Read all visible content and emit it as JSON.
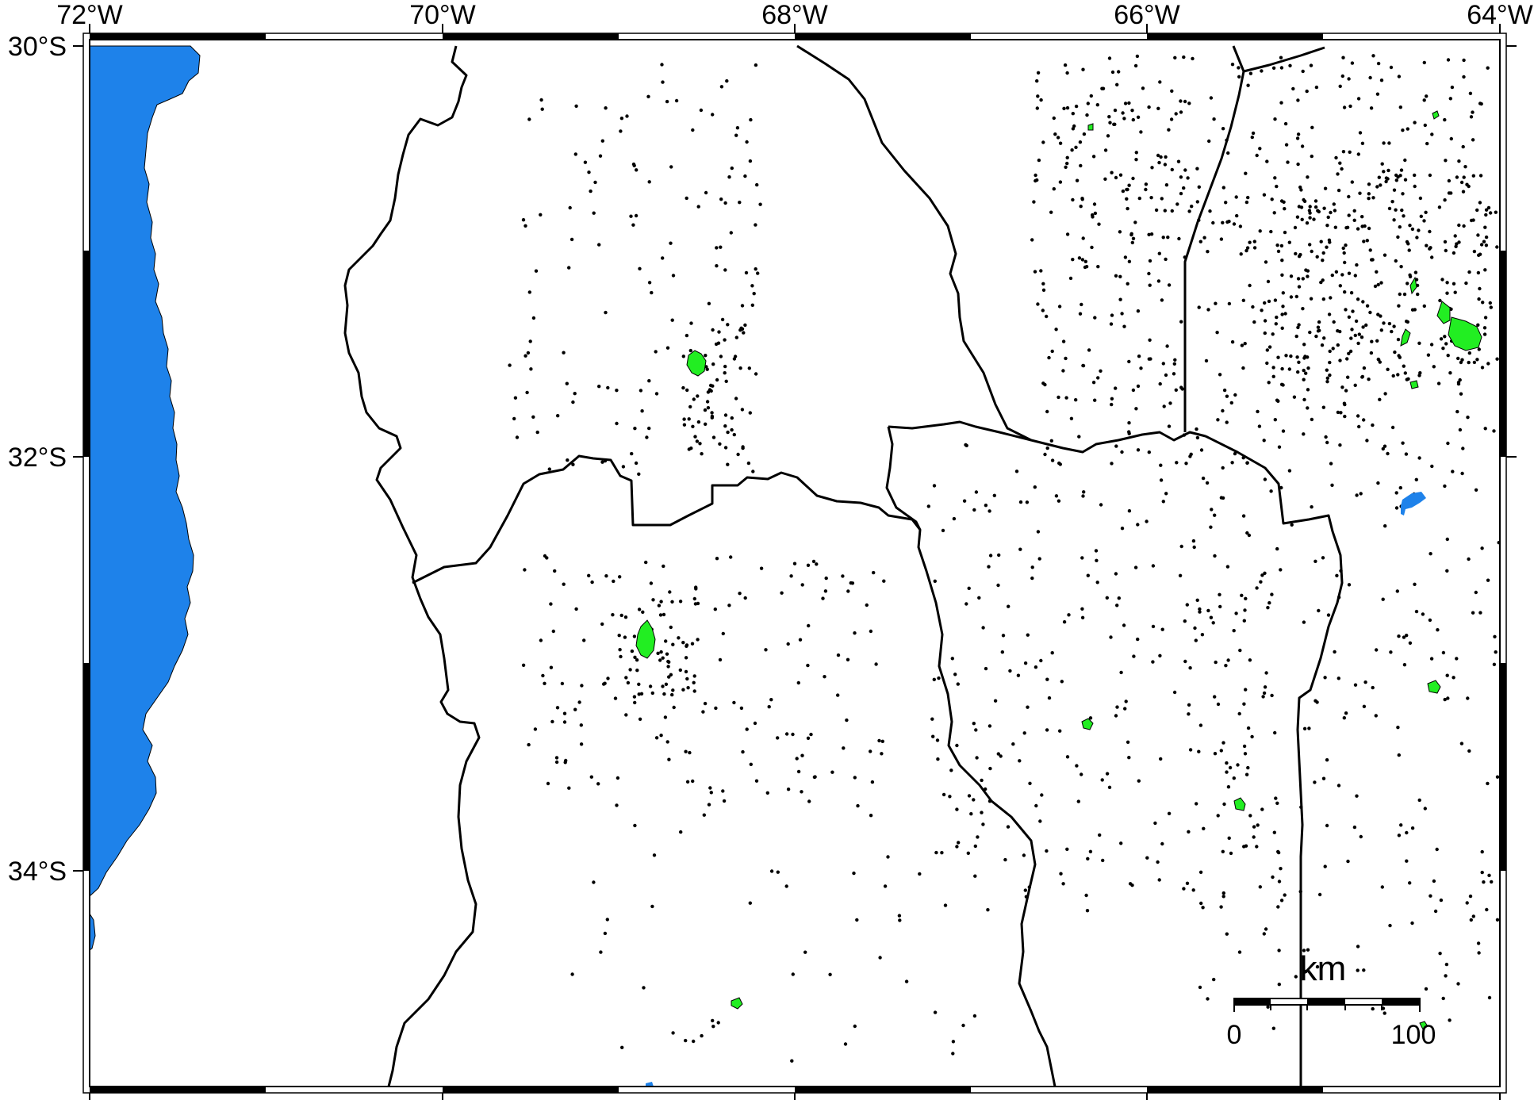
{
  "map": {
    "lon_labels": [
      "72°W",
      "70°W",
      "68°W",
      "66°W",
      "64°W"
    ],
    "lat_labels": [
      "30°S",
      "32°S",
      "34°S"
    ],
    "extent": {
      "lon_min": -72,
      "lon_max": -64,
      "lat_min": -35.05,
      "lat_max": -30
    },
    "frame_style": "alternating black/white ticks, 1 degree intervals",
    "colors": {
      "ocean": "#1e82ea",
      "land": "#ffffff",
      "urban": "#22ee22",
      "lake": "#1e82ea",
      "points": "#000000",
      "borders": "#000000"
    },
    "scale_bar": {
      "unit": "km",
      "label_start": "0",
      "label_end": "100"
    }
  }
}
